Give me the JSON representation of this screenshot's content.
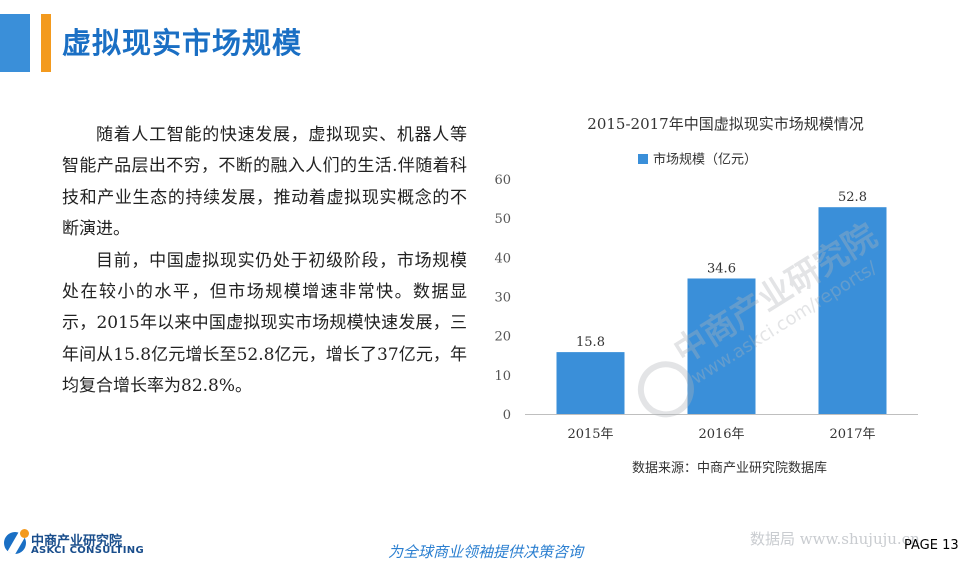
{
  "header": {
    "title": "虚拟现实市场规模"
  },
  "body": {
    "paragraphs": [
      "随着人工智能的快速发展，虚拟现实、机器人等智能产品层出不穷，不断的融入人们的生活.伴随着科技和产业生态的持续发展，推动着虚拟现实概念的不断演进。",
      "目前，中国虚拟现实仍处于初级阶段，市场规模处在较小的水平，但市场规模增速非常快。数据显示，2015年以来中国虚拟现实市场规模快速发展，三年间从15.8亿元增长至52.8亿元，增长了37亿元，年均复合增长率为82.8%。"
    ]
  },
  "chart_data": {
    "type": "bar",
    "title": "2015-2017年中国虚拟现实市场规模情况",
    "categories": [
      "2015年",
      "2016年",
      "2017年"
    ],
    "series": [
      {
        "name": "市场规模（亿元）",
        "values": [
          15.8,
          34.6,
          52.8
        ]
      }
    ],
    "data_labels": [
      "15.8",
      "34.6",
      "52.8"
    ],
    "ylim": [
      0,
      60
    ],
    "yticks": [
      0,
      10,
      20,
      30,
      40,
      50,
      60
    ],
    "grid": false,
    "legend_position": "top",
    "bar_color": "#3a8fd9",
    "source": "数据来源：中商产业研究院数据库"
  },
  "watermark": {
    "main": "中商产业研究院",
    "url": "www.askci.com/reports/"
  },
  "footer": {
    "logo_cn": "中商产业研究院",
    "logo_en": "ASKCI CONSULTING",
    "slogan": "为全球商业领袖提供决策咨询",
    "site": "数据局 www.shujuju.cn",
    "page": "PAGE 13"
  },
  "colors": {
    "accent_blue": "#3a8fd9",
    "accent_orange": "#f39a1e",
    "title_blue": "#1a6fc4"
  }
}
